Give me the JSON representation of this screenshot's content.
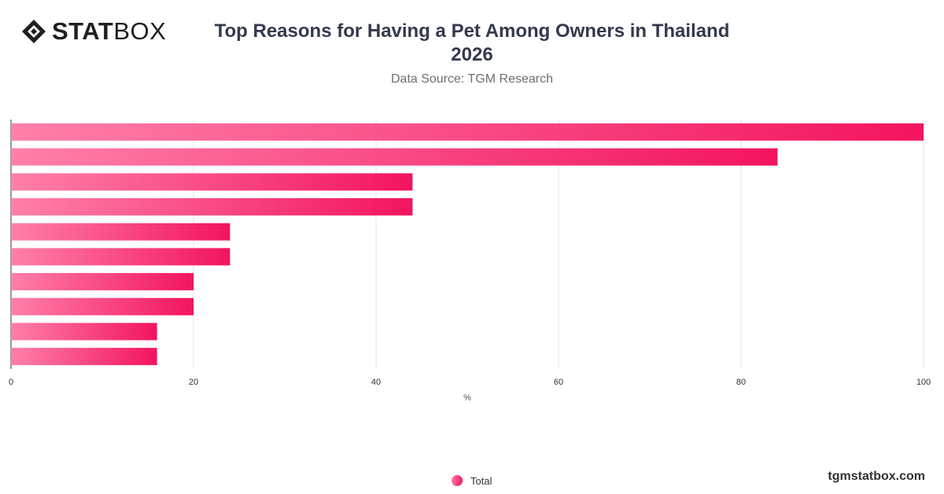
{
  "brand": {
    "logo_bold": "STAT",
    "logo_light": "BOX"
  },
  "title": "Top Reasons for Having a Pet Among Owners in Thailand 2026",
  "subtitle": "Data Source: TGM Research",
  "footer": "tgmstatbox.com",
  "legend": {
    "label": "Total"
  },
  "colors": {
    "bar_start": "#ff80a8",
    "bar_end": "#f31460",
    "grid": "#e3e3e3",
    "axis": "#333333"
  },
  "chart_data": {
    "type": "bar",
    "orientation": "horizontal",
    "categories": [
      "",
      "",
      "",
      "",
      "",
      "",
      "",
      "",
      "",
      ""
    ],
    "series": [
      {
        "name": "Total",
        "values": [
          100,
          84,
          44,
          44,
          24,
          24,
          20,
          20,
          16,
          16
        ]
      }
    ],
    "xlabel": "%",
    "xlim": [
      0,
      100
    ],
    "xticks": [
      0,
      20,
      40,
      60,
      80,
      100
    ],
    "grid": true,
    "legend_position": "bottom-center"
  }
}
